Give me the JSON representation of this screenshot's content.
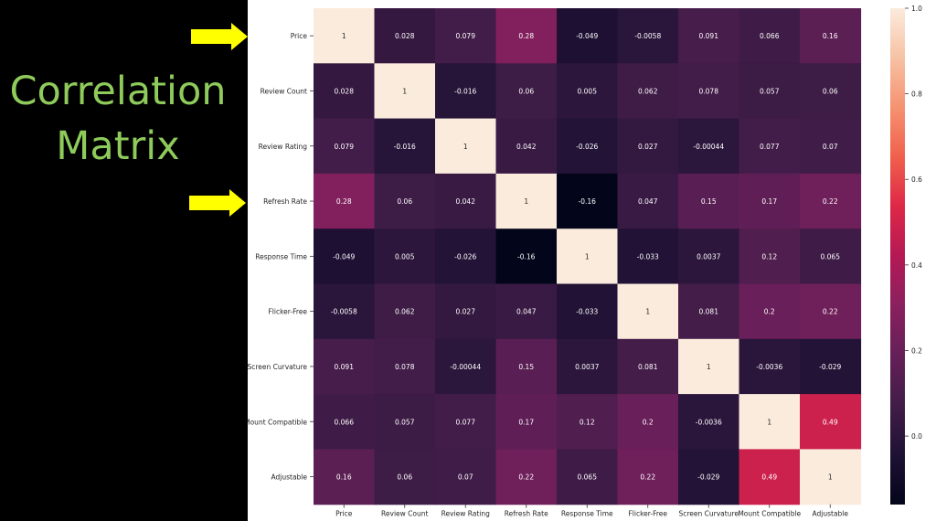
{
  "slide": {
    "title_line1": "Correlation",
    "title_line2": "Matrix"
  },
  "colors": {
    "background": "#000000",
    "title": "#8ecb5b",
    "arrow": "#ffff00",
    "panel": "#ffffff"
  },
  "arrows": [
    {
      "points_to": "Price"
    },
    {
      "points_to": "Refresh Rate"
    }
  ],
  "chart_data": {
    "type": "heatmap",
    "title": "",
    "xlabel": "",
    "ylabel": "",
    "x_labels": [
      "Price",
      "Review Count",
      "Review Rating",
      "Refresh Rate",
      "Response Time",
      "Flicker-Free",
      "Screen Curvature",
      "Mount Compatible",
      "Adjustable"
    ],
    "y_labels": [
      "Price",
      "Review Count",
      "Review Rating",
      "Refresh Rate",
      "Response Time",
      "Flicker-Free",
      "Screen Curvature",
      "Mount Compatible",
      "Adjustable"
    ],
    "values": [
      [
        1,
        0.028,
        0.079,
        0.28,
        -0.049,
        -0.0058,
        0.091,
        0.066,
        0.16
      ],
      [
        0.028,
        1,
        -0.016,
        0.06,
        0.005,
        0.062,
        0.078,
        0.057,
        0.06
      ],
      [
        0.079,
        -0.016,
        1,
        0.042,
        -0.026,
        0.027,
        -0.00044,
        0.077,
        0.07
      ],
      [
        0.28,
        0.06,
        0.042,
        1,
        -0.16,
        0.047,
        0.15,
        0.17,
        0.22
      ],
      [
        -0.049,
        0.005,
        -0.026,
        -0.16,
        1,
        -0.033,
        0.0037,
        0.12,
        0.065
      ],
      [
        -0.0058,
        0.062,
        0.027,
        0.047,
        -0.033,
        1,
        0.081,
        0.2,
        0.22
      ],
      [
        0.091,
        0.078,
        -0.00044,
        0.15,
        0.0037,
        0.081,
        1,
        -0.0036,
        -0.029
      ],
      [
        0.066,
        0.057,
        0.077,
        0.17,
        0.12,
        0.2,
        -0.0036,
        1,
        0.49
      ],
      [
        0.16,
        0.06,
        0.07,
        0.22,
        0.065,
        0.22,
        -0.029,
        0.49,
        1
      ]
    ],
    "annotations": [
      [
        "1",
        "0.028",
        "0.079",
        "0.28",
        "-0.049",
        "-0.0058",
        "0.091",
        "0.066",
        "0.16"
      ],
      [
        "0.028",
        "1",
        "-0.016",
        "0.06",
        "0.005",
        "0.062",
        "0.078",
        "0.057",
        "0.06"
      ],
      [
        "0.079",
        "-0.016",
        "1",
        "0.042",
        "-0.026",
        "0.027",
        "-0.00044",
        "0.077",
        "0.07"
      ],
      [
        "0.28",
        "0.06",
        "0.042",
        "1",
        "-0.16",
        "0.047",
        "0.15",
        "0.17",
        "0.22"
      ],
      [
        "-0.049",
        "0.005",
        "-0.026",
        "-0.16",
        "1",
        "-0.033",
        "0.0037",
        "0.12",
        "0.065"
      ],
      [
        "-0.0058",
        "0.062",
        "0.027",
        "0.047",
        "-0.033",
        "1",
        "0.081",
        "0.2",
        "0.22"
      ],
      [
        "0.091",
        "0.078",
        "-0.00044",
        "0.15",
        "0.0037",
        "0.081",
        "1",
        "-0.0036",
        "-0.029"
      ],
      [
        "0.066",
        "0.057",
        "0.077",
        "0.17",
        "0.12",
        "0.2",
        "-0.0036",
        "1",
        "0.49"
      ],
      [
        "0.16",
        "0.06",
        "0.07",
        "0.22",
        "0.065",
        "0.22",
        "-0.029",
        "0.49",
        "1"
      ]
    ],
    "colormap": "rocket",
    "vmin": -0.16,
    "vmax": 1.0,
    "colorbar": {
      "ticks": [
        0.0,
        0.2,
        0.4,
        0.6,
        0.8,
        1.0
      ],
      "tick_labels": [
        "0.0",
        "0.2",
        "0.4",
        "0.6",
        "0.8",
        "1.0"
      ],
      "placement": "right"
    },
    "legend": "none",
    "grid": false
  }
}
